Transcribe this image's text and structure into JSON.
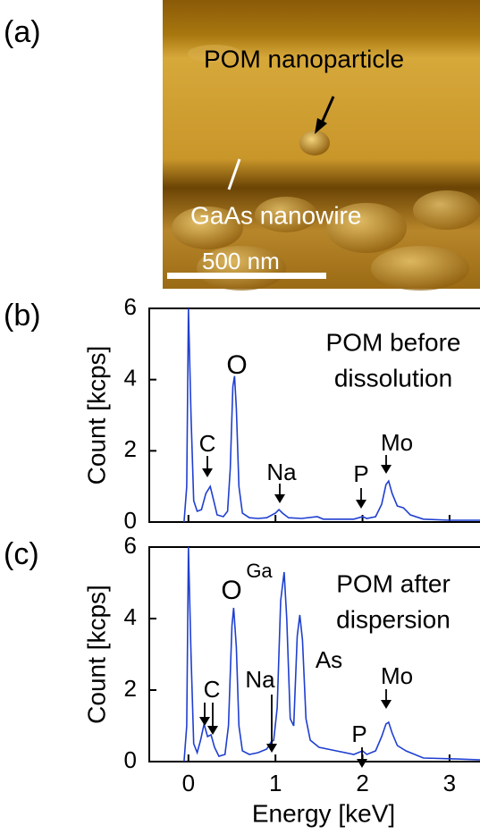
{
  "panel_a": {
    "label": "(a)",
    "annotations": [
      "POM nanoparticle",
      "GaAs nanowire"
    ],
    "scale_bar": "500 nm"
  },
  "chart_data": [
    {
      "type": "line",
      "panel_label": "(b)",
      "label_lines": [
        "POM before",
        "dissolution"
      ],
      "ylabel": "Count [kcps]",
      "color": "#1f3fd0",
      "xlim": [
        -0.45,
        3.35
      ],
      "ylim": [
        0,
        6
      ],
      "yticks": [
        0,
        2,
        4,
        6
      ],
      "xticks": [
        0,
        1,
        2,
        3
      ],
      "xtick_labels": false,
      "peak_labels": [
        "O",
        "C",
        "Na",
        "P",
        "Mo"
      ],
      "x": [
        -0.05,
        -0.02,
        0,
        0.03,
        0.06,
        0.1,
        0.15,
        0.2,
        0.25,
        0.29,
        0.33,
        0.4,
        0.45,
        0.48,
        0.51,
        0.53,
        0.55,
        0.58,
        0.62,
        0.7,
        0.8,
        0.9,
        1.0,
        1.04,
        1.08,
        1.15,
        1.3,
        1.48,
        1.55,
        1.7,
        1.9,
        2.0,
        2.05,
        2.15,
        2.22,
        2.27,
        2.3,
        2.34,
        2.4,
        2.47,
        2.55,
        2.7,
        3.0,
        3.35
      ],
      "values": [
        0,
        1,
        6,
        3,
        0.6,
        0.3,
        0.35,
        0.8,
        1.0,
        0.6,
        0.2,
        0.15,
        0.3,
        1.5,
        3.8,
        4.1,
        3.2,
        1.0,
        0.25,
        0.12,
        0.1,
        0.12,
        0.25,
        0.35,
        0.25,
        0.12,
        0.1,
        0.15,
        0.08,
        0.08,
        0.08,
        0.15,
        0.1,
        0.15,
        0.5,
        1.05,
        1.15,
        0.8,
        0.45,
        0.4,
        0.2,
        0.08,
        0.05,
        0.05
      ]
    },
    {
      "type": "line",
      "panel_label": "(c)",
      "label_lines": [
        "POM after",
        "dispersion"
      ],
      "ylabel": "Count [kcps]",
      "xlabel": "Energy [keV]",
      "color": "#1f3fd0",
      "xlim": [
        -0.45,
        3.35
      ],
      "ylim": [
        0,
        6
      ],
      "yticks": [
        0,
        2,
        4,
        6
      ],
      "xticks": [
        0,
        1,
        2,
        3
      ],
      "xtick_labels": true,
      "peak_labels": [
        "O",
        "Ga",
        "As",
        "C",
        "Na",
        "P",
        "Mo"
      ],
      "x": [
        -0.05,
        -0.02,
        0,
        0.03,
        0.06,
        0.1,
        0.14,
        0.18,
        0.22,
        0.26,
        0.3,
        0.35,
        0.42,
        0.46,
        0.5,
        0.52,
        0.55,
        0.58,
        0.62,
        0.7,
        0.8,
        0.9,
        0.95,
        0.98,
        1.02,
        1.06,
        1.1,
        1.13,
        1.17,
        1.21,
        1.25,
        1.28,
        1.31,
        1.35,
        1.4,
        1.5,
        1.7,
        1.9,
        2.0,
        2.05,
        2.15,
        2.22,
        2.27,
        2.3,
        2.34,
        2.4,
        2.5,
        2.7,
        3.0,
        3.35
      ],
      "values": [
        0,
        1,
        6,
        3,
        0.5,
        0.25,
        0.6,
        1.05,
        0.7,
        0.75,
        0.4,
        0.15,
        0.2,
        1.0,
        3.8,
        4.3,
        3.2,
        1.0,
        0.3,
        0.2,
        0.25,
        0.35,
        0.55,
        0.6,
        1.5,
        4.5,
        5.3,
        4.0,
        1.2,
        1.0,
        3.5,
        4.1,
        3.4,
        1.2,
        0.6,
        0.4,
        0.3,
        0.2,
        0.3,
        0.2,
        0.3,
        0.7,
        1.05,
        1.1,
        0.8,
        0.45,
        0.3,
        0.1,
        0.08,
        0.05
      ]
    }
  ]
}
